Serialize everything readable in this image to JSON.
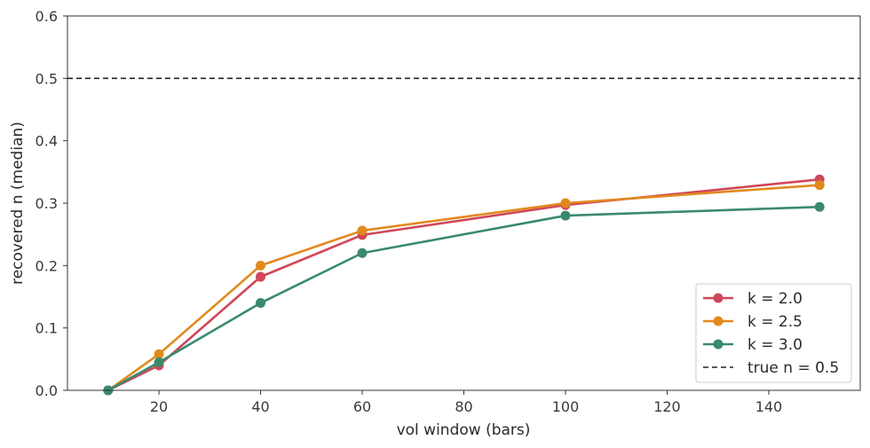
{
  "chart_data": {
    "type": "line",
    "xlabel": "vol window (bars)",
    "ylabel": "recovered n (median)",
    "xlim": [
      2,
      158
    ],
    "ylim": [
      0.0,
      0.6
    ],
    "xticks": [
      20,
      40,
      60,
      80,
      100,
      120,
      140
    ],
    "yticks": [
      0.0,
      0.1,
      0.2,
      0.3,
      0.4,
      0.5,
      0.6
    ],
    "x": [
      10,
      20,
      40,
      60,
      100,
      150
    ],
    "series": [
      {
        "name": "k = 2.0",
        "color": "#d0475a",
        "values": [
          0.0,
          0.04,
          0.182,
          0.249,
          0.297,
          0.338
        ]
      },
      {
        "name": "k = 2.5",
        "color": "#e08a1e",
        "values": [
          0.0,
          0.058,
          0.2,
          0.256,
          0.3,
          0.329
        ]
      },
      {
        "name": "k = 3.0",
        "color": "#3a8a6e",
        "values": [
          0.0,
          0.045,
          0.14,
          0.22,
          0.28,
          0.294
        ]
      }
    ],
    "reference_line": {
      "label": "true n = 0.5",
      "y": 0.5,
      "style": "dashed",
      "color": "#222222"
    },
    "legend": {
      "position": "lower-right"
    },
    "grid": false
  }
}
